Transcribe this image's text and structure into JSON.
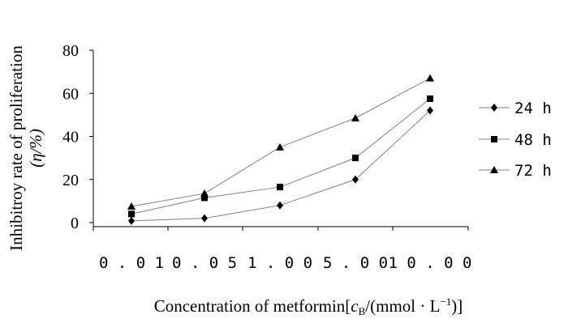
{
  "chart_data": {
    "type": "line",
    "title": "",
    "categories": [
      "0.01",
      "0.05",
      "1.00",
      "5.00",
      "10.00"
    ],
    "ylim": [
      0,
      80
    ],
    "yticks": [
      0,
      20,
      40,
      60,
      80
    ],
    "ylabel_line1": "Inhibitroy rate of proliferation",
    "ylabel_line2": "(η/%)",
    "xlabel_main": "Concentration of metformin[",
    "xlabel_c": "c",
    "xlabel_sub": "B",
    "xlabel_rest": "/(mmol · L",
    "xlabel_sup": "−1",
    "xlabel_end": ")]",
    "grid": false,
    "legend_position": "right",
    "series": [
      {
        "name": "24 h",
        "marker": "diamond",
        "values": [
          0.8,
          2,
          8,
          20,
          52
        ]
      },
      {
        "name": "48 h",
        "marker": "square",
        "values": [
          4,
          11.5,
          16.5,
          30,
          57.5
        ]
      },
      {
        "name": "72 h",
        "marker": "triangle",
        "values": [
          7.5,
          13.5,
          35,
          48.5,
          67
        ]
      }
    ],
    "line_color": "#808080",
    "marker_color": "#000000"
  }
}
